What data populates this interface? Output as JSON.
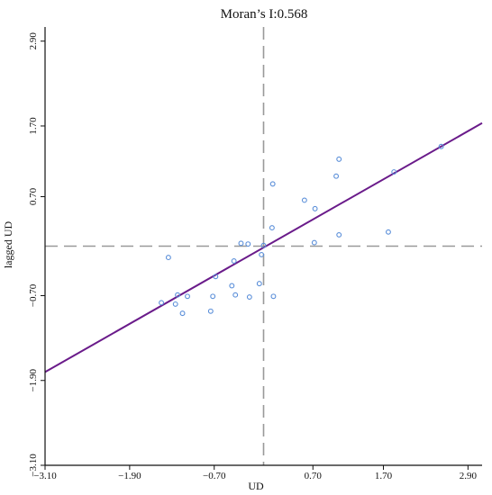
{
  "chart_data": {
    "type": "scatter",
    "title": "Moran’s I:0.568",
    "xlabel": "UD",
    "ylabel": "lagged UD",
    "xlim": [
      -3.1,
      3.1
    ],
    "ylim": [
      -3.1,
      3.1
    ],
    "xticks": [
      -3.1,
      -1.9,
      -0.7,
      0.7,
      1.7,
      2.9
    ],
    "xtick_labels": [
      "−3.10",
      "−1.90",
      "−0.70",
      "0.70",
      "1.70",
      "2.90"
    ],
    "yticks": [
      -3.1,
      -1.9,
      -0.7,
      0.7,
      1.7,
      2.9
    ],
    "ytick_labels": [
      "−3.10",
      "−1.90",
      "−0.70",
      "0.70",
      "1.70",
      "2.90"
    ],
    "grid": false,
    "reference_lines": {
      "x_mean": 0.0,
      "y_mean": 0.0
    },
    "regression": {
      "slope": 0.568,
      "intercept": -0.02
    },
    "colors": {
      "points": "#5b8fd9",
      "regression": "#6a1b8a",
      "reference": "#999999",
      "axis": "#111111"
    },
    "points": [
      {
        "x": -1.35,
        "y": -0.16
      },
      {
        "x": -1.45,
        "y": -0.8
      },
      {
        "x": -1.25,
        "y": -0.82
      },
      {
        "x": -1.22,
        "y": -0.69
      },
      {
        "x": -1.15,
        "y": -0.95
      },
      {
        "x": -1.08,
        "y": -0.71
      },
      {
        "x": -0.75,
        "y": -0.92
      },
      {
        "x": -0.72,
        "y": -0.71
      },
      {
        "x": -0.68,
        "y": -0.43
      },
      {
        "x": -0.45,
        "y": -0.56
      },
      {
        "x": -0.4,
        "y": -0.69
      },
      {
        "x": -0.42,
        "y": -0.21
      },
      {
        "x": -0.32,
        "y": 0.04
      },
      {
        "x": -0.22,
        "y": 0.03
      },
      {
        "x": -0.2,
        "y": -0.72
      },
      {
        "x": -0.06,
        "y": -0.53
      },
      {
        "x": -0.03,
        "y": -0.12
      },
      {
        "x": 0.0,
        "y": 0.01
      },
      {
        "x": 0.12,
        "y": 0.26
      },
      {
        "x": 0.13,
        "y": 0.88
      },
      {
        "x": 0.14,
        "y": -0.71
      },
      {
        "x": 0.58,
        "y": 0.65
      },
      {
        "x": 0.73,
        "y": 0.53
      },
      {
        "x": 0.72,
        "y": 0.05
      },
      {
        "x": 1.03,
        "y": 0.99
      },
      {
        "x": 1.07,
        "y": 1.23
      },
      {
        "x": 1.07,
        "y": 0.16
      },
      {
        "x": 1.77,
        "y": 0.2
      },
      {
        "x": 1.85,
        "y": 1.05
      },
      {
        "x": 2.52,
        "y": 1.41
      }
    ]
  }
}
